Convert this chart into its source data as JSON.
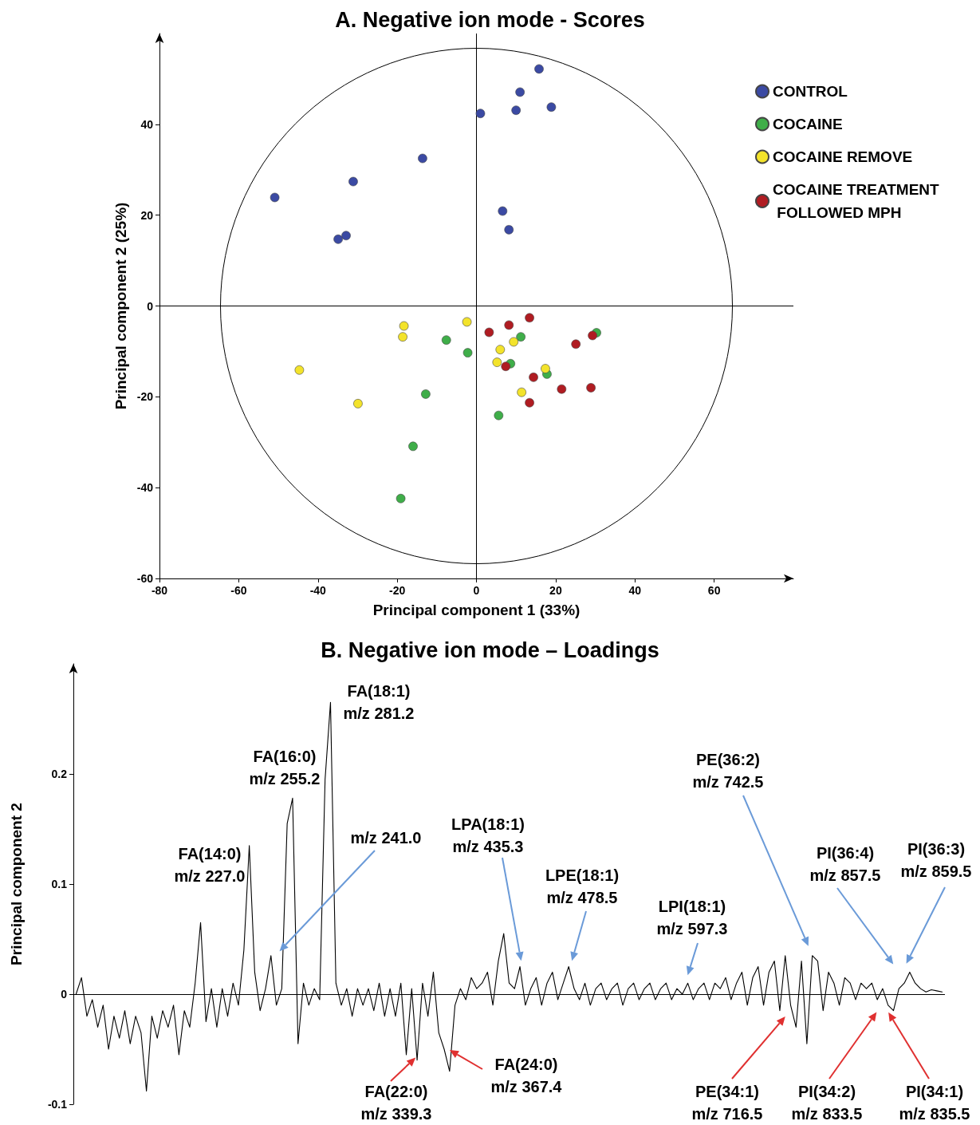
{
  "chart_data": [
    {
      "type": "scatter",
      "title": "A. Negative ion mode - Scores",
      "xlabel": "Principal component 1 (33%)",
      "ylabel": "Principal component 2 (25%)",
      "xlim": [
        -80,
        80
      ],
      "ylim": [
        -60,
        60
      ],
      "xticks": [
        -80,
        -60,
        -40,
        -20,
        0,
        20,
        40,
        60
      ],
      "yticks": [
        -60,
        -40,
        -20,
        0,
        20,
        40
      ],
      "legend": "top right",
      "marker": "circle",
      "grid": false,
      "ref_lines": [
        {
          "axis": "x",
          "value": 0,
          "color": "#000000"
        },
        {
          "axis": "y",
          "value": 0,
          "color": "#000000"
        }
      ],
      "series": [
        {
          "name": "CONTROL",
          "color": "#3b4aa3",
          "x": [
            15.8,
            11.0,
            1.0,
            10.0,
            18.9,
            -13.6,
            -31.1,
            -50.9,
            6.6,
            8.2,
            -32.9,
            -34.9
          ],
          "values": [
            52.2,
            47.1,
            42.4,
            43.1,
            43.8,
            32.5,
            27.4,
            23.9,
            20.9,
            16.8,
            15.5,
            14.7
          ]
        },
        {
          "name": "COCAINE",
          "color": "#3fae49",
          "x": [
            30.3,
            11.2,
            -7.6,
            -2.2,
            8.6,
            17.8,
            -12.8,
            5.6,
            -16.0,
            -19.1
          ],
          "values": [
            -5.9,
            -6.8,
            -7.5,
            -10.3,
            -12.7,
            -15.0,
            -19.4,
            -24.1,
            -30.9,
            -42.4
          ]
        },
        {
          "name": "COCAINE REMOVE",
          "color": "#f3e32b",
          "x": [
            -2.4,
            -18.3,
            -18.6,
            -44.7,
            9.4,
            6.0,
            5.2,
            17.4,
            11.4,
            -29.9
          ],
          "values": [
            -3.5,
            -4.4,
            -6.8,
            -14.1,
            -7.9,
            -9.6,
            -12.4,
            -13.8,
            -19.0,
            -21.5
          ]
        },
        {
          "name": "COCAINE TREATMENT FOLLOWED MPH",
          "color": "#b01c22",
          "x": [
            13.4,
            8.2,
            3.2,
            29.3,
            25.1,
            7.4,
            14.4,
            21.5,
            28.9,
            13.4
          ],
          "values": [
            -2.6,
            -4.2,
            -5.8,
            -6.5,
            -8.4,
            -13.3,
            -15.7,
            -18.3,
            -18.0,
            -21.3
          ]
        }
      ]
    },
    {
      "type": "line",
      "title": "B. Negative ion mode – Loadings",
      "ylabel": "Principal component 2",
      "ylim": [
        -0.1,
        0.3
      ],
      "yticks": [
        -0.1,
        0,
        0.1,
        0.2
      ],
      "tick_labels": "y",
      "marker": "none",
      "grid": false,
      "ref_lines": [
        {
          "axis": "y",
          "value": 0,
          "color": "#000000"
        }
      ],
      "categories": [
        null,
        null,
        null,
        null,
        null,
        null,
        null,
        null,
        null,
        null,
        null,
        null,
        null,
        null,
        null,
        null,
        null,
        null,
        null,
        null,
        null,
        null,
        null,
        null,
        null,
        null,
        null,
        null,
        null,
        null,
        null,
        null,
        null,
        null,
        null,
        null,
        null,
        null,
        null,
        null,
        null,
        null,
        null,
        null,
        null,
        null,
        null,
        null,
        null,
        null,
        null,
        null,
        null,
        null,
        null,
        null,
        null,
        null,
        null,
        null,
        null,
        null,
        null,
        null,
        null,
        null,
        null,
        null,
        null,
        null,
        null,
        null,
        null,
        null,
        null,
        null,
        null,
        null,
        null,
        null,
        null,
        null,
        null,
        null,
        null,
        null,
        null,
        null,
        null,
        null,
        null,
        null,
        null,
        null,
        null,
        null,
        null,
        null,
        null,
        null,
        null,
        null,
        null,
        null,
        null,
        null,
        null,
        null,
        null,
        null,
        null,
        null,
        null,
        null,
        null,
        null,
        null,
        null,
        null,
        null,
        null,
        null,
        null,
        null,
        null,
        null,
        null,
        null,
        null,
        null,
        null,
        null,
        null,
        null,
        null,
        null,
        null,
        null,
        null,
        null,
        null,
        null,
        null,
        null,
        null,
        null,
        null,
        null,
        null,
        null,
        null,
        null,
        null,
        null,
        null,
        null,
        null,
        null,
        null,
        null,
        null
      ],
      "annotations": [
        "FA(14:0)\nm/z 227.0",
        "FA(16:0)\nm/z 255.2",
        "FA(18:1)\nm/z 281.2",
        "m/z 241.0",
        "LPA(18:1)\nm/z 435.3",
        "LPE(18:1)\nm/z 478.5",
        "LPI(18:1)\nm/z 597.3",
        "PE(36:2)\nm/z 742.5",
        "PI(36:4)\nm/z 857.5",
        "PI(36:3)\nm/z 859.5",
        "FA(22:0)\nm/z 339.3",
        "FA(24:0)\nm/z 367.4",
        "PE(34:1)\nm/z 716.5",
        "PI(34:2)\nm/z 833.5",
        "PI(34:1)\nm/z 835.5"
      ],
      "series": [
        {
          "color": "#000000",
          "values": [
            0.0,
            0.015,
            -0.02,
            -0.005,
            -0.03,
            -0.01,
            -0.05,
            -0.02,
            -0.04,
            -0.015,
            -0.045,
            -0.02,
            -0.035,
            -0.088,
            -0.02,
            -0.04,
            -0.015,
            -0.03,
            -0.01,
            -0.055,
            -0.015,
            -0.03,
            0.01,
            0.065,
            -0.025,
            0.005,
            -0.03,
            0.005,
            -0.02,
            0.01,
            -0.01,
            0.04,
            0.135,
            0.02,
            -0.015,
            0.005,
            0.035,
            -0.01,
            0.005,
            0.155,
            0.178,
            -0.045,
            0.01,
            -0.01,
            0.005,
            -0.005,
            0.195,
            0.265,
            0.01,
            -0.01,
            0.005,
            -0.02,
            0.005,
            -0.01,
            0.005,
            -0.015,
            0.01,
            -0.02,
            0.005,
            -0.02,
            0.01,
            -0.055,
            0.005,
            -0.06,
            0.01,
            -0.02,
            0.02,
            -0.035,
            -0.05,
            -0.07,
            -0.01,
            0.005,
            -0.005,
            0.015,
            0.005,
            0.01,
            0.02,
            -0.01,
            0.03,
            0.055,
            0.01,
            0.005,
            0.025,
            -0.01,
            0.005,
            0.015,
            -0.01,
            0.01,
            0.02,
            -0.005,
            0.01,
            0.025,
            0.005,
            -0.005,
            0.01,
            -0.01,
            0.005,
            0.01,
            -0.005,
            0.005,
            0.01,
            -0.01,
            0.005,
            0.01,
            -0.005,
            0.005,
            0.01,
            -0.005,
            0.005,
            0.01,
            -0.005,
            0.005,
            0.0,
            0.01,
            -0.005,
            0.005,
            0.01,
            -0.005,
            0.01,
            0.005,
            0.015,
            -0.005,
            0.01,
            0.02,
            -0.01,
            0.015,
            0.025,
            -0.01,
            0.02,
            0.03,
            -0.015,
            0.035,
            -0.01,
            -0.03,
            0.03,
            -0.045,
            0.035,
            0.03,
            -0.015,
            0.02,
            0.01,
            -0.01,
            0.015,
            0.01,
            -0.005,
            0.01,
            0.005,
            0.01,
            -0.005,
            0.005,
            -0.01,
            -0.015,
            0.005,
            0.01,
            0.02,
            0.01,
            0.005,
            0.002,
            0.004,
            0.003,
            0.002
          ]
        }
      ]
    }
  ]
}
